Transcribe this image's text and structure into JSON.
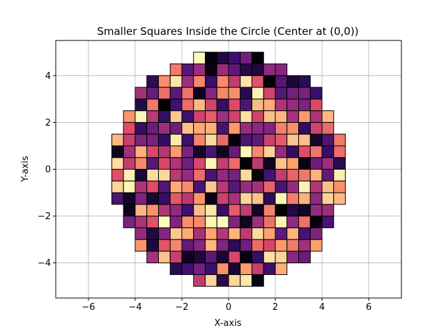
{
  "chart_data": {
    "type": "heatmap",
    "title": "Smaller Squares Inside the Circle (Center at (0,0))",
    "xlabel": "X-axis",
    "ylabel": "Y-axis",
    "xlim": [
      -7.4,
      7.4
    ],
    "ylim": [
      -5.5,
      5.5
    ],
    "aspect": "equal",
    "grid": true,
    "x_ticks": [
      -6,
      -4,
      -2,
      0,
      2,
      4,
      6
    ],
    "y_ticks": [
      -4,
      -2,
      0,
      2,
      4
    ],
    "x_tick_labels": [
      "−6",
      "−4",
      "−2",
      "0",
      "2",
      "4",
      "6"
    ],
    "y_tick_labels": [
      "−4",
      "−2",
      "0",
      "2",
      "4"
    ],
    "circle": {
      "center": [
        0,
        0
      ],
      "radius": 5
    },
    "square_size": 0.5,
    "colormap": "magma",
    "color_stops": [
      "#000004",
      "#3b0f70",
      "#8c2981",
      "#de4968",
      "#fe9f6d",
      "#fcfdbf"
    ],
    "edgecolor": "#000000",
    "random_seed": 7
  }
}
